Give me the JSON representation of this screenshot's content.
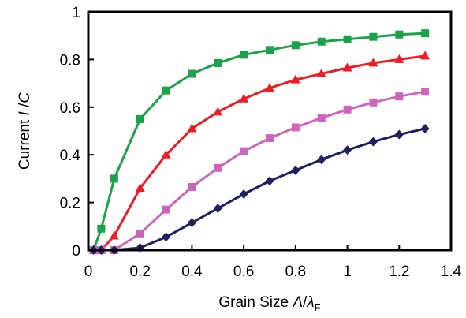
{
  "chart_data": {
    "type": "line",
    "xlabel": {
      "main": "Grain Size ",
      "var_upper": "Λ",
      "slash": "/",
      "var_lower": "λ",
      "subscript": "F"
    },
    "ylabel": {
      "main": "Current ",
      "var_i": "I",
      "slash": " /",
      "var_c": "C"
    },
    "xlim": [
      0,
      1.4
    ],
    "ylim": [
      0,
      1
    ],
    "x_ticks": [
      "0",
      "0.2",
      "0.4",
      "0.6",
      "0.8",
      "1",
      "1.2",
      "1.4"
    ],
    "y_ticks": [
      "0",
      "0.2",
      "0.4",
      "0.6",
      "0.8",
      "1"
    ],
    "grid": false,
    "legend": "none",
    "series": [
      {
        "color": "#1aa34a",
        "marker": "square",
        "points": [
          [
            0.02,
            0.0
          ],
          [
            0.05,
            0.09
          ],
          [
            0.1,
            0.3
          ],
          [
            0.2,
            0.55
          ],
          [
            0.3,
            0.67
          ],
          [
            0.4,
            0.74
          ],
          [
            0.5,
            0.785
          ],
          [
            0.6,
            0.82
          ],
          [
            0.7,
            0.84
          ],
          [
            0.8,
            0.86
          ],
          [
            0.9,
            0.875
          ],
          [
            1.0,
            0.885
          ],
          [
            1.1,
            0.895
          ],
          [
            1.2,
            0.905
          ],
          [
            1.3,
            0.91
          ]
        ]
      },
      {
        "color": "#ee1c25",
        "marker": "triangle",
        "points": [
          [
            0.02,
            0.0
          ],
          [
            0.05,
            0.0
          ],
          [
            0.1,
            0.06
          ],
          [
            0.2,
            0.26
          ],
          [
            0.3,
            0.4
          ],
          [
            0.4,
            0.51
          ],
          [
            0.5,
            0.58
          ],
          [
            0.6,
            0.635
          ],
          [
            0.7,
            0.68
          ],
          [
            0.8,
            0.715
          ],
          [
            0.9,
            0.74
          ],
          [
            1.0,
            0.765
          ],
          [
            1.1,
            0.785
          ],
          [
            1.2,
            0.8
          ],
          [
            1.3,
            0.815
          ]
        ]
      },
      {
        "color": "#cc66bb",
        "marker": "square",
        "points": [
          [
            0.02,
            0.0
          ],
          [
            0.05,
            0.0
          ],
          [
            0.1,
            0.0
          ],
          [
            0.2,
            0.07
          ],
          [
            0.3,
            0.17
          ],
          [
            0.4,
            0.265
          ],
          [
            0.5,
            0.345
          ],
          [
            0.6,
            0.415
          ],
          [
            0.7,
            0.47
          ],
          [
            0.8,
            0.515
          ],
          [
            0.9,
            0.555
          ],
          [
            1.0,
            0.59
          ],
          [
            1.1,
            0.62
          ],
          [
            1.2,
            0.645
          ],
          [
            1.3,
            0.665
          ]
        ]
      },
      {
        "color": "#1f2062",
        "marker": "diamond",
        "points": [
          [
            0.02,
            0.0
          ],
          [
            0.05,
            0.0
          ],
          [
            0.1,
            0.0
          ],
          [
            0.2,
            0.01
          ],
          [
            0.3,
            0.055
          ],
          [
            0.4,
            0.115
          ],
          [
            0.5,
            0.175
          ],
          [
            0.6,
            0.235
          ],
          [
            0.7,
            0.29
          ],
          [
            0.8,
            0.335
          ],
          [
            0.9,
            0.38
          ],
          [
            1.0,
            0.42
          ],
          [
            1.1,
            0.455
          ],
          [
            1.2,
            0.485
          ],
          [
            1.3,
            0.51
          ]
        ]
      }
    ]
  }
}
